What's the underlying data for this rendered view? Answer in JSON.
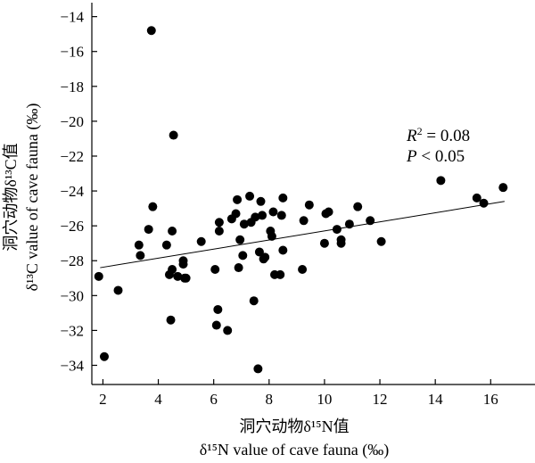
{
  "chart_data": {
    "type": "scatter",
    "xlabel_cn": "洞穴动物δ¹⁵N值",
    "xlabel_en": "δ¹⁵N value of cave fauna (‰)",
    "ylabel_cn": "洞穴动物δ¹³C值",
    "ylabel_en": "δ¹³C value of cave fauna (‰)",
    "xlim": [
      1.6,
      17.6
    ],
    "ylim": [
      -35.1,
      -13.2
    ],
    "xticks": [
      2,
      4,
      6,
      8,
      10,
      12,
      14,
      16
    ],
    "yticks": [
      -14,
      -16,
      -18,
      -20,
      -22,
      -24,
      -26,
      -28,
      -30,
      -32,
      -34
    ],
    "annotation": {
      "r2_symbol": "R",
      "r2_sup": "2",
      "r2_value": " = 0.08",
      "p_symbol": "P",
      "p_value": " < 0.05"
    },
    "trendline": {
      "x": [
        1.9,
        16.5
      ],
      "y": [
        -28.4,
        -24.6
      ]
    },
    "points": [
      {
        "x": 1.85,
        "y": -28.9
      },
      {
        "x": 2.05,
        "y": -33.5
      },
      {
        "x": 2.55,
        "y": -29.7
      },
      {
        "x": 3.3,
        "y": -27.1
      },
      {
        "x": 3.35,
        "y": -27.7
      },
      {
        "x": 3.65,
        "y": -26.2
      },
      {
        "x": 3.75,
        "y": -14.8
      },
      {
        "x": 3.8,
        "y": -24.9
      },
      {
        "x": 4.3,
        "y": -27.1
      },
      {
        "x": 4.4,
        "y": -28.8
      },
      {
        "x": 4.45,
        "y": -31.4
      },
      {
        "x": 4.5,
        "y": -26.3
      },
      {
        "x": 4.5,
        "y": -28.5
      },
      {
        "x": 4.55,
        "y": -20.8
      },
      {
        "x": 4.7,
        "y": -28.9
      },
      {
        "x": 4.9,
        "y": -28.2
      },
      {
        "x": 4.9,
        "y": -28.0
      },
      {
        "x": 4.95,
        "y": -29.0
      },
      {
        "x": 5.0,
        "y": -29.0
      },
      {
        "x": 5.55,
        "y": -26.9
      },
      {
        "x": 6.05,
        "y": -28.5
      },
      {
        "x": 6.1,
        "y": -31.7
      },
      {
        "x": 6.15,
        "y": -30.8
      },
      {
        "x": 6.2,
        "y": -25.8
      },
      {
        "x": 6.2,
        "y": -26.3
      },
      {
        "x": 6.5,
        "y": -32.0
      },
      {
        "x": 6.65,
        "y": -25.6
      },
      {
        "x": 6.8,
        "y": -25.3
      },
      {
        "x": 6.85,
        "y": -24.5
      },
      {
        "x": 6.9,
        "y": -28.4
      },
      {
        "x": 6.95,
        "y": -26.8
      },
      {
        "x": 7.05,
        "y": -27.7
      },
      {
        "x": 7.1,
        "y": -25.9
      },
      {
        "x": 7.3,
        "y": -24.3
      },
      {
        "x": 7.35,
        "y": -25.8
      },
      {
        "x": 7.45,
        "y": -30.3
      },
      {
        "x": 7.5,
        "y": -25.5
      },
      {
        "x": 7.6,
        "y": -34.2
      },
      {
        "x": 7.65,
        "y": -27.5
      },
      {
        "x": 7.7,
        "y": -24.6
      },
      {
        "x": 7.75,
        "y": -25.4
      },
      {
        "x": 7.8,
        "y": -27.9
      },
      {
        "x": 7.85,
        "y": -27.8
      },
      {
        "x": 8.05,
        "y": -26.3
      },
      {
        "x": 8.1,
        "y": -26.6
      },
      {
        "x": 8.15,
        "y": -25.2
      },
      {
        "x": 8.2,
        "y": -28.8
      },
      {
        "x": 8.4,
        "y": -28.8
      },
      {
        "x": 8.45,
        "y": -25.4
      },
      {
        "x": 8.5,
        "y": -27.4
      },
      {
        "x": 8.5,
        "y": -24.4
      },
      {
        "x": 9.2,
        "y": -28.5
      },
      {
        "x": 9.25,
        "y": -25.7
      },
      {
        "x": 9.45,
        "y": -24.8
      },
      {
        "x": 10.0,
        "y": -27.0
      },
      {
        "x": 10.05,
        "y": -25.3
      },
      {
        "x": 10.15,
        "y": -25.2
      },
      {
        "x": 10.45,
        "y": -26.2
      },
      {
        "x": 10.6,
        "y": -26.8
      },
      {
        "x": 10.6,
        "y": -27.0
      },
      {
        "x": 10.9,
        "y": -25.9
      },
      {
        "x": 11.2,
        "y": -24.9
      },
      {
        "x": 11.65,
        "y": -25.7
      },
      {
        "x": 12.05,
        "y": -26.9
      },
      {
        "x": 14.2,
        "y": -23.4
      },
      {
        "x": 15.5,
        "y": -24.4
      },
      {
        "x": 15.75,
        "y": -24.7
      },
      {
        "x": 16.45,
        "y": -23.8
      }
    ]
  }
}
